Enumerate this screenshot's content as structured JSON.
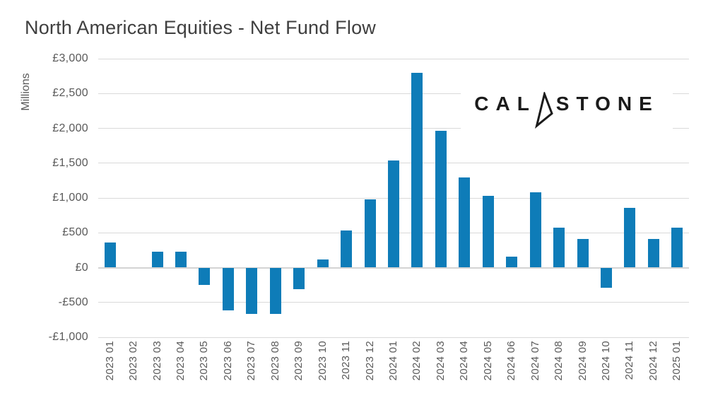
{
  "title": {
    "text": "North American Equities - Net Fund Flow"
  },
  "y_axis_title": "Millions",
  "logo": {
    "text_before_arrow": "CAL",
    "text_after_arrow": "STONE",
    "arrow_icon": "stylized-a-paper-plane"
  },
  "colors": {
    "bar": "#0e7cb8",
    "gridline": "#d9d9d9",
    "zero_line": "#d4d4d4",
    "title_text": "#3f3f3f",
    "axis_text": "#595959",
    "logo_text": "#1b1b1b",
    "background": "#ffffff"
  },
  "chart_data": {
    "type": "bar",
    "title": "North American Equities - Net Fund Flow",
    "ylabel": "Millions",
    "xlabel": "",
    "categories": [
      "2023 01",
      "2023 02",
      "2023 03",
      "2023 04",
      "2023 05",
      "2023 06",
      "2023 07",
      "2023 08",
      "2023 09",
      "2023 10",
      "2023 11",
      "2023 12",
      "2024 01",
      "2024 02",
      "2024 03",
      "2024 04",
      "2024 05",
      "2024 06",
      "2024 07",
      "2024 08",
      "2024 09",
      "2024 10",
      "2024 11",
      "2024 12",
      "2025 01"
    ],
    "values": [
      360,
      0,
      230,
      230,
      -250,
      -610,
      -670,
      -660,
      -310,
      115,
      530,
      975,
      1540,
      2800,
      1965,
      1290,
      1030,
      155,
      1085,
      570,
      410,
      -290,
      860,
      410,
      570
    ],
    "ylim": [
      -1000,
      3000
    ],
    "yticks": [
      {
        "value": 3000,
        "label": "£3,000"
      },
      {
        "value": 2500,
        "label": "£2,500"
      },
      {
        "value": 2000,
        "label": "£2,000"
      },
      {
        "value": 1500,
        "label": "£1,500"
      },
      {
        "value": 1000,
        "label": "£1,000"
      },
      {
        "value": 500,
        "label": "£500"
      },
      {
        "value": 0,
        "label": "£0"
      },
      {
        "value": -500,
        "label": "-£500"
      },
      {
        "value": -1000,
        "label": "-£1,000"
      }
    ],
    "grid": true,
    "legend": false
  }
}
